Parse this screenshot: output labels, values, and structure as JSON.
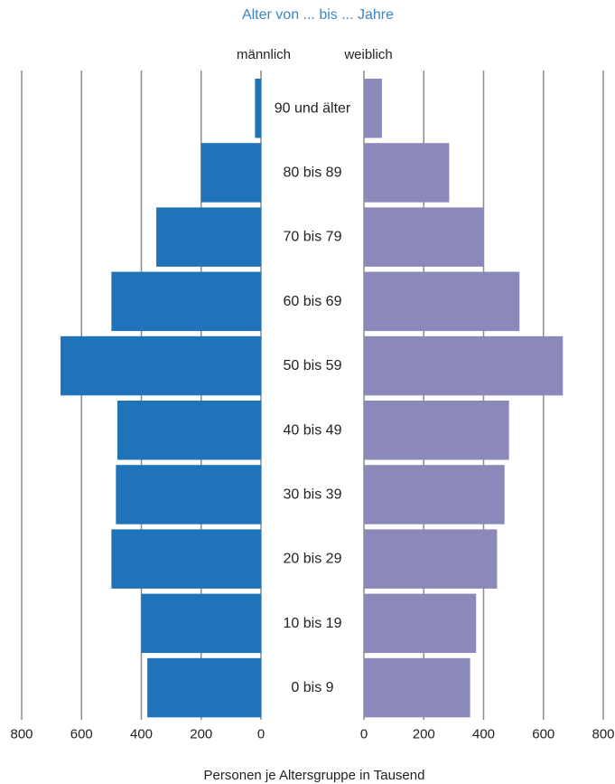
{
  "chart_data": {
    "type": "bar",
    "orientation": "horizontal",
    "title": "Alter von ... bis ... Jahre",
    "xlabel": "Personen je Altersgruppe in Tausend",
    "xlim": [
      0,
      800
    ],
    "x_ticks": [
      "0",
      "200",
      "400",
      "600",
      "800"
    ],
    "grid": true,
    "categories": [
      "90 und älter",
      "80 bis 89",
      "70 bis 79",
      "60 bis 69",
      "50 bis 59",
      "40 bis 49",
      "30 bis 39",
      "20 bis 29",
      "10 bis 19",
      "0 bis 9"
    ],
    "series": [
      {
        "name": "männlich",
        "color": "#1f73b8",
        "values": [
          20,
          200,
          350,
          500,
          670,
          480,
          485,
          500,
          400,
          380
        ]
      },
      {
        "name": "weiblich",
        "color": "#8a89b9",
        "values": [
          60,
          285,
          400,
          520,
          665,
          485,
          470,
          445,
          375,
          355
        ]
      }
    ]
  }
}
